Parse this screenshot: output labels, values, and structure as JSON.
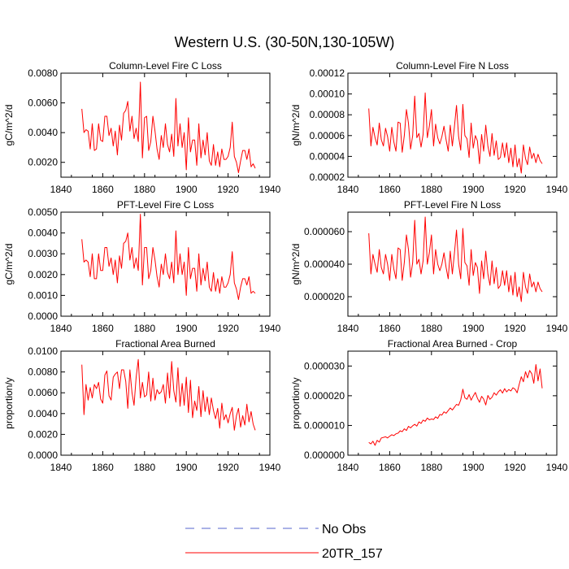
{
  "figure_title": "Western U.S. (30-50N,130-105W)",
  "chart_data": [
    {
      "type": "line",
      "title": "Column-Level Fire C Loss",
      "xlabel": "",
      "ylabel": "gC/m^2/d",
      "xlim": [
        1840,
        1940
      ],
      "ylim": [
        0.001,
        0.008
      ],
      "xticks": [
        1840,
        1860,
        1880,
        1900,
        1920,
        1940
      ],
      "yticks": [
        0.002,
        0.004,
        0.006,
        0.008
      ],
      "ytick_labels": [
        "0.0020",
        "0.0040",
        "0.0060",
        "0.0080"
      ],
      "series": [
        {
          "name": "20TR_157",
          "x_start": 1850,
          "x_step": 1,
          "values": [
            0.0056,
            0.004,
            0.0042,
            0.0041,
            0.0029,
            0.0046,
            0.0028,
            0.0029,
            0.0046,
            0.0035,
            0.0034,
            0.0051,
            0.0051,
            0.0038,
            0.0043,
            0.0031,
            0.0041,
            0.0025,
            0.0045,
            0.0035,
            0.0053,
            0.0055,
            0.0061,
            0.0041,
            0.0051,
            0.0036,
            0.0043,
            0.0034,
            0.0074,
            0.0023,
            0.005,
            0.0051,
            0.0028,
            0.0034,
            0.0051,
            0.0041,
            0.0029,
            0.0022,
            0.0038,
            0.003,
            0.0046,
            0.0032,
            0.0027,
            0.0039,
            0.0024,
            0.0063,
            0.0031,
            0.0046,
            0.003,
            0.004,
            0.0015,
            0.005,
            0.0027,
            0.0035,
            0.0035,
            0.0018,
            0.0046,
            0.0023,
            0.0035,
            0.0025,
            0.004,
            0.0021,
            0.0018,
            0.0032,
            0.0018,
            0.0027,
            0.0017,
            0.0029,
            0.0022,
            0.0022,
            0.0024,
            0.003,
            0.0047,
            0.0024,
            0.002,
            0.0013,
            0.0021,
            0.0028,
            0.0028,
            0.0022,
            0.0029,
            0.0017,
            0.0019,
            0.0016
          ]
        }
      ]
    },
    {
      "type": "line",
      "title": "Column-Level Fire N Loss",
      "xlabel": "",
      "ylabel": "gN/m^2/d",
      "xlim": [
        1840,
        1940
      ],
      "ylim": [
        2e-05,
        0.00012
      ],
      "xticks": [
        1840,
        1860,
        1880,
        1900,
        1920,
        1940
      ],
      "yticks": [
        2e-05,
        4e-05,
        6e-05,
        8e-05,
        0.0001,
        0.00012
      ],
      "ytick_labels": [
        "0.00002",
        "0.00004",
        "0.00006",
        "0.00008",
        "0.00010",
        "0.00012"
      ],
      "series": [
        {
          "name": "20TR_157",
          "x_start": 1850,
          "x_step": 1,
          "values": [
            8.6e-05,
            5e-05,
            6.8e-05,
            5.8e-05,
            5.1e-05,
            7.2e-05,
            5.6e-05,
            5e-05,
            6.7e-05,
            5.9e-05,
            4.5e-05,
            6.8e-05,
            5.4e-05,
            4.5e-05,
            7.3e-05,
            7.2e-05,
            4.4e-05,
            6e-05,
            8.5e-05,
            7.2e-05,
            4.7e-05,
            6e-05,
            9.8e-05,
            5.8e-05,
            6.2e-05,
            4.9e-05,
            6.1e-05,
            0.000101,
            5.8e-05,
            6.9e-05,
            8.5e-05,
            5e-05,
            7.1e-05,
            5.8e-05,
            5.2e-05,
            5.9e-05,
            6.9e-05,
            5.6e-05,
            4.5e-05,
            7e-05,
            5e-05,
            6.9e-05,
            8.9e-05,
            5.9e-05,
            4.6e-05,
            9e-05,
            6e-05,
            5.7e-05,
            3.9e-05,
            7.2e-05,
            4.8e-05,
            6e-05,
            5.5e-05,
            3.3e-05,
            6.1e-05,
            4.5e-05,
            7e-05,
            5e-05,
            4e-05,
            6.2e-05,
            4.1e-05,
            5.5e-05,
            3.7e-05,
            3.9e-05,
            5.3e-05,
            3.9e-05,
            5.3e-05,
            3.4e-05,
            4.8e-05,
            3e-05,
            5.1e-05,
            3e-05,
            3.8e-05,
            2.4e-05,
            5.1e-05,
            3.8e-05,
            3.2e-05,
            4.9e-05,
            3.8e-05,
            4.3e-05,
            3.4e-05,
            4.2e-05,
            3.6e-05,
            3.3e-05
          ]
        }
      ]
    },
    {
      "type": "line",
      "title": "PFT-Level Fire C Loss",
      "xlabel": "",
      "ylabel": "gC/m^2/d",
      "xlim": [
        1840,
        1940
      ],
      "ylim": [
        0.0,
        0.005
      ],
      "xticks": [
        1840,
        1860,
        1880,
        1900,
        1920,
        1940
      ],
      "yticks": [
        0.0,
        0.001,
        0.002,
        0.003,
        0.004,
        0.005
      ],
      "ytick_labels": [
        "0.0000",
        "0.0010",
        "0.0020",
        "0.0030",
        "0.0040",
        "0.0050"
      ],
      "series": [
        {
          "name": "20TR_157",
          "x_start": 1850,
          "x_step": 1,
          "values": [
            0.0037,
            0.0026,
            0.0027,
            0.0026,
            0.0019,
            0.003,
            0.0018,
            0.0018,
            0.003,
            0.0022,
            0.0022,
            0.0033,
            0.0033,
            0.0024,
            0.0028,
            0.002,
            0.0027,
            0.0016,
            0.0029,
            0.0023,
            0.0035,
            0.0036,
            0.004,
            0.0027,
            0.0033,
            0.0023,
            0.0028,
            0.0022,
            0.0049,
            0.0015,
            0.0033,
            0.0033,
            0.0018,
            0.0022,
            0.0033,
            0.0027,
            0.0019,
            0.0014,
            0.0025,
            0.002,
            0.003,
            0.0021,
            0.0018,
            0.0026,
            0.0016,
            0.0041,
            0.002,
            0.003,
            0.002,
            0.0026,
            0.001,
            0.0033,
            0.0018,
            0.0023,
            0.0023,
            0.0012,
            0.003,
            0.0015,
            0.0023,
            0.0017,
            0.0026,
            0.0014,
            0.0012,
            0.0021,
            0.0012,
            0.0018,
            0.0011,
            0.0019,
            0.0014,
            0.0014,
            0.0016,
            0.002,
            0.0031,
            0.0016,
            0.0013,
            0.0008,
            0.0014,
            0.0018,
            0.0018,
            0.0015,
            0.0019,
            0.0011,
            0.0012,
            0.0011
          ]
        }
      ]
    },
    {
      "type": "line",
      "title": "PFT-Level Fire N Loss",
      "xlabel": "",
      "ylabel": "gN/m^2/d",
      "xlim": [
        1840,
        1940
      ],
      "ylim": [
        8e-06,
        7.2e-05
      ],
      "xticks": [
        1840,
        1860,
        1880,
        1900,
        1920,
        1940
      ],
      "yticks": [
        2e-05,
        4e-05,
        6e-05
      ],
      "ytick_labels": [
        "0.000020",
        "0.000040",
        "0.000060"
      ],
      "series": [
        {
          "name": "20TR_157",
          "x_start": 1850,
          "x_step": 1,
          "values": [
            5.9e-05,
            3.4e-05,
            4.6e-05,
            4e-05,
            3.5e-05,
            4.9e-05,
            3.8e-05,
            3.4e-05,
            4.6e-05,
            4e-05,
            3e-05,
            4.6e-05,
            3.7e-05,
            3.1e-05,
            5e-05,
            4.9e-05,
            3e-05,
            4.1e-05,
            5.8e-05,
            4.9e-05,
            3.2e-05,
            4.1e-05,
            6.7e-05,
            4e-05,
            4.3e-05,
            3.4e-05,
            4.2e-05,
            6.9e-05,
            4e-05,
            4.7e-05,
            5.8e-05,
            3.4e-05,
            4.9e-05,
            4e-05,
            3.6e-05,
            4e-05,
            4.7e-05,
            3.8e-05,
            3.1e-05,
            4.8e-05,
            3.4e-05,
            4.7e-05,
            6.1e-05,
            4e-05,
            3.1e-05,
            6.2e-05,
            4.1e-05,
            3.9e-05,
            2.7e-05,
            4.9e-05,
            3.3e-05,
            4.1e-05,
            3.8e-05,
            2.2e-05,
            4.2e-05,
            3.1e-05,
            4.8e-05,
            3.4e-05,
            2.7e-05,
            4.2e-05,
            2.8e-05,
            3.8e-05,
            2.5e-05,
            2.7e-05,
            3.6e-05,
            2.7e-05,
            3.6e-05,
            2.3e-05,
            3.3e-05,
            2.1e-05,
            3.5e-05,
            2e-05,
            2.6e-05,
            1.7e-05,
            3.5e-05,
            2.6e-05,
            2.2e-05,
            3.4e-05,
            2.6e-05,
            2.9e-05,
            2.3e-05,
            2.9e-05,
            2.5e-05,
            2.3e-05
          ]
        }
      ]
    },
    {
      "type": "line",
      "title": "Fractional Area Burned",
      "xlabel": "",
      "ylabel": "proportion/y",
      "xlim": [
        1840,
        1940
      ],
      "ylim": [
        0.0,
        0.01
      ],
      "xticks": [
        1840,
        1860,
        1880,
        1900,
        1920,
        1940
      ],
      "yticks": [
        0.0,
        0.002,
        0.004,
        0.006,
        0.008,
        0.01
      ],
      "ytick_labels": [
        "0.0000",
        "0.0020",
        "0.0040",
        "0.0060",
        "0.0080",
        "0.0100"
      ],
      "series": [
        {
          "name": "20TR_157",
          "x_start": 1850,
          "x_step": 1,
          "values": [
            0.0087,
            0.0039,
            0.0068,
            0.0053,
            0.0065,
            0.0055,
            0.0068,
            0.0064,
            0.007,
            0.0054,
            0.005,
            0.0077,
            0.0081,
            0.0057,
            0.0053,
            0.0075,
            0.0078,
            0.008,
            0.0064,
            0.0082,
            0.0082,
            0.0071,
            0.0045,
            0.0082,
            0.006,
            0.0048,
            0.0075,
            0.0092,
            0.0055,
            0.007,
            0.0056,
            0.0058,
            0.008,
            0.0052,
            0.0074,
            0.0053,
            0.0063,
            0.0059,
            0.0061,
            0.0068,
            0.005,
            0.0079,
            0.0055,
            0.009,
            0.0062,
            0.0051,
            0.0084,
            0.0047,
            0.0069,
            0.0048,
            0.0075,
            0.0041,
            0.0072,
            0.0036,
            0.0052,
            0.0043,
            0.0066,
            0.0037,
            0.0062,
            0.0042,
            0.0056,
            0.0039,
            0.0055,
            0.0043,
            0.0035,
            0.0045,
            0.0026,
            0.005,
            0.0034,
            0.0039,
            0.0031,
            0.004,
            0.0046,
            0.0024,
            0.0038,
            0.0045,
            0.0027,
            0.0038,
            0.0029,
            0.0049,
            0.0032,
            0.0042,
            0.003,
            0.0024
          ]
        }
      ]
    },
    {
      "type": "line",
      "title": "Fractional Area Burned - Crop",
      "xlabel": "",
      "ylabel": "proportion/y",
      "xlim": [
        1840,
        1940
      ],
      "ylim": [
        0.0,
        3.5e-05
      ],
      "xticks": [
        1840,
        1860,
        1880,
        1900,
        1920,
        1940
      ],
      "yticks": [
        0.0,
        1e-05,
        2e-05,
        3e-05
      ],
      "ytick_labels": [
        "0.000000",
        "0.000010",
        "0.000020",
        "0.000030"
      ],
      "series": [
        {
          "name": "20TR_157",
          "x_start": 1850,
          "x_step": 1,
          "values": [
            4.3e-06,
            3.8e-06,
            4.7e-06,
            3.3e-06,
            5e-06,
            4.4e-06,
            5.8e-06,
            6e-06,
            6.2e-06,
            5.8e-06,
            6.4e-06,
            6.9e-06,
            6.6e-06,
            7.2e-06,
            7.4e-06,
            8.2e-06,
            7.9e-06,
            8.9e-06,
            8.3e-06,
            9.7e-06,
            9.2e-06,
            9.9e-06,
            1.04e-05,
            9.8e-06,
            1.12e-05,
            1.07e-05,
            1.18e-05,
            1.14e-05,
            1.25e-05,
            1.19e-05,
            1.22e-05,
            1.2e-05,
            1.29e-05,
            1.24e-05,
            1.37e-05,
            1.35e-05,
            1.46e-05,
            1.41e-05,
            1.5e-05,
            1.59e-05,
            1.52e-05,
            1.62e-05,
            1.71e-05,
            1.68e-05,
            1.86e-05,
            2.22e-05,
            1.93e-05,
            1.88e-05,
            2.04e-05,
            1.85e-05,
            1.99e-05,
            2.11e-05,
            1.92e-05,
            1.78e-05,
            1.98e-05,
            1.89e-05,
            1.69e-05,
            2.01e-05,
            1.88e-05,
            1.95e-05,
            2.1e-05,
            2.02e-05,
            2.13e-05,
            2.2e-05,
            2.09e-05,
            2.24e-05,
            2.13e-05,
            2.21e-05,
            2.16e-05,
            2.27e-05,
            2.22e-05,
            2.1e-05,
            2.38e-05,
            2.64e-05,
            2.47e-05,
            2.81e-05,
            2.6e-05,
            2.85e-05,
            2.74e-05,
            2.42e-05,
            3.05e-05,
            2.5e-05,
            2.9e-05,
            2.25e-05
          ]
        }
      ]
    }
  ],
  "legend": {
    "placement": "bottom-center",
    "items": [
      {
        "label": "No Obs",
        "color": "#5566cc",
        "style": "dashed"
      },
      {
        "label": "20TR_157",
        "color": "#ff0000",
        "style": "solid"
      }
    ]
  },
  "colors": {
    "series": "#ff0000",
    "obs": "#5566cc",
    "axis": "#000000"
  }
}
